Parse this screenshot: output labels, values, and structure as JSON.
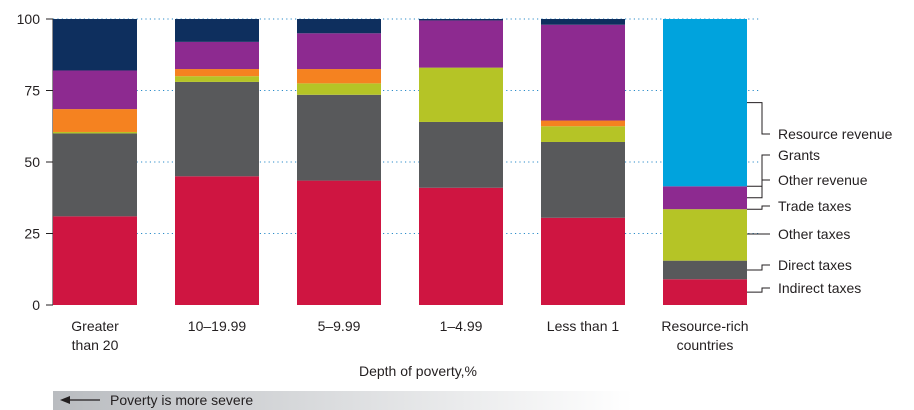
{
  "chart_data": {
    "type": "bar",
    "stacked": true,
    "xlabel": "Depth of poverty,%",
    "ylabel": "",
    "ylim": [
      0,
      100
    ],
    "yticks": [
      0,
      25,
      50,
      75,
      100
    ],
    "grid": "dotted horizontal",
    "note": "Poverty is more severe",
    "categories": [
      [
        "Greater",
        "than 20"
      ],
      [
        "10–19.99"
      ],
      [
        "5–9.99"
      ],
      [
        "1–4.99"
      ],
      [
        "Less than 1"
      ],
      [
        "Resource-rich",
        "countries"
      ]
    ],
    "series": [
      {
        "name": "Indirect taxes",
        "color": "#cf1541",
        "values": [
          31,
          45,
          43.5,
          41,
          30.5,
          9
        ]
      },
      {
        "name": "Direct taxes",
        "color": "#58595b",
        "values": [
          29,
          33,
          30,
          23,
          26.5,
          6.5
        ]
      },
      {
        "name": "Other taxes",
        "color": "#b5c426",
        "values": [
          0.5,
          2,
          4,
          19,
          5.5,
          18
        ]
      },
      {
        "name": "Trade taxes",
        "color": "#f58220",
        "values": [
          8,
          2.5,
          5,
          0,
          2,
          0
        ]
      },
      {
        "name": "Other revenue",
        "color": "#8d2a90",
        "values": [
          13.5,
          9.5,
          12.5,
          16.5,
          33.5,
          8
        ]
      },
      {
        "name": "Grants",
        "color": "#0e2f5e",
        "values": [
          18,
          8,
          5,
          0.5,
          2,
          0
        ]
      },
      {
        "name": "Resource revenue",
        "color": "#00a3dd",
        "values": [
          0,
          0,
          0,
          0,
          0,
          58.5
        ]
      }
    ]
  }
}
